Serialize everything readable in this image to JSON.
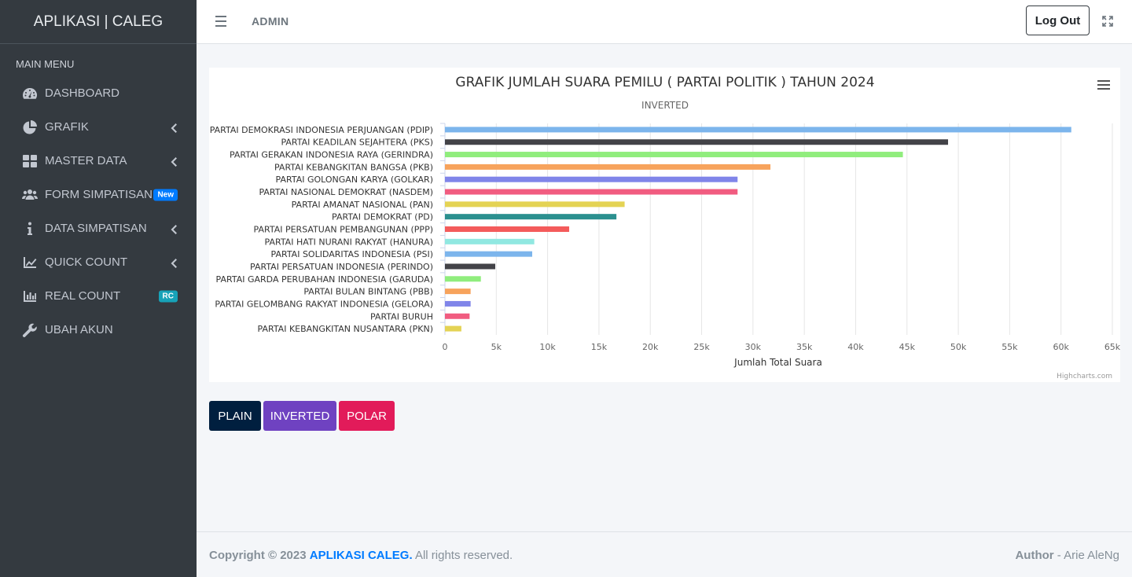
{
  "brand": "APLIKASI | CALEG",
  "sidebar": {
    "header": "MAIN MENU",
    "items": [
      {
        "label": "DASHBOARD",
        "icon": "dashboard-icon"
      },
      {
        "label": "GRAFIK",
        "icon": "pie-chart-icon"
      },
      {
        "label": "MASTER DATA",
        "icon": "grid-icon"
      },
      {
        "label": "FORM SIMPATISAN",
        "icon": "users-icon",
        "badge": "New"
      },
      {
        "label": "DATA SIMPATISAN",
        "icon": "info-icon"
      },
      {
        "label": "QUICK COUNT",
        "icon": "line-chart-icon"
      },
      {
        "label": "REAL COUNT",
        "icon": "bar-chart-icon",
        "badge": "RC"
      },
      {
        "label": "UBAH AKUN",
        "icon": "wrench-icon"
      }
    ]
  },
  "navbar": {
    "title": "ADMIN",
    "logout_label": "Log Out"
  },
  "chart_data": {
    "type": "bar",
    "orientation": "horizontal",
    "title": "GRAFIK JUMLAH SUARA PEMILU ( PARTAI POLITIK ) TAHUN 2024",
    "subtitle": "INVERTED",
    "xlabel": "Jumlah Total Suara",
    "ylim": [
      0,
      65000
    ],
    "ticks": [
      "0",
      "5k",
      "10k",
      "15k",
      "20k",
      "25k",
      "30k",
      "35k",
      "40k",
      "45k",
      "50k",
      "55k",
      "60k",
      "65k"
    ],
    "credits": "Highcharts.com",
    "categories": [
      "PARTAI DEMOKRASI INDONESIA PERJUANGAN (PDIP)",
      "PARTAI KEADILAN SEJAHTERA (PKS)",
      "PARTAI GERAKAN INDONESIA RAYA (GERINDRA)",
      "PARTAI KEBANGKITAN BANGSA (PKB)",
      "PARTAI GOLONGAN KARYA (GOLKAR)",
      "PARTAI NASIONAL DEMOKRAT (NASDEM)",
      "PARTAI AMANAT NASIONAL (PAN)",
      "PARTAI DEMOKRAT (PD)",
      "PARTAI PERSATUAN PEMBANGUNAN (PPP)",
      "PARTAI HATI NURANI RAKYAT (HANURA)",
      "PARTAI SOLIDARITAS INDONESIA (PSI)",
      "PARTAI PERSATUAN INDONESIA (PERINDO)",
      "PARTAI GARDA PERUBAHAN INDONESIA (GARUDA)",
      "PARTAI BULAN BINTANG (PBB)",
      "PARTAI GELOMBANG RAKYAT INDONESIA (GELORA)",
      "PARTAI BURUH",
      "PARTAI KEBANGKITAN NUSANTARA (PKN)"
    ],
    "values": [
      61000,
      49000,
      44600,
      31700,
      28500,
      28500,
      17500,
      16700,
      12100,
      8700,
      8500,
      4900,
      3500,
      2500,
      2500,
      2400,
      1600
    ],
    "colors": [
      "#7cb5ec",
      "#434348",
      "#90ed7d",
      "#f7a35c",
      "#8085e9",
      "#f15c80",
      "#e4d354",
      "#2b908f",
      "#f45b5b",
      "#91e8e1",
      "#7cb5ec",
      "#434348",
      "#90ed7d",
      "#f7a35c",
      "#8085e9",
      "#f15c80",
      "#e4d354"
    ]
  },
  "buttons": {
    "plain": "PLAIN",
    "inverted": "INVERTED",
    "polar": "POLAR"
  },
  "footer": {
    "copyright": "Copyright © 2023",
    "app_name": "APLIKASI CALEG.",
    "rights": "All rights reserved.",
    "author_label": "Author",
    "author_name": "- Arie AleNg"
  }
}
